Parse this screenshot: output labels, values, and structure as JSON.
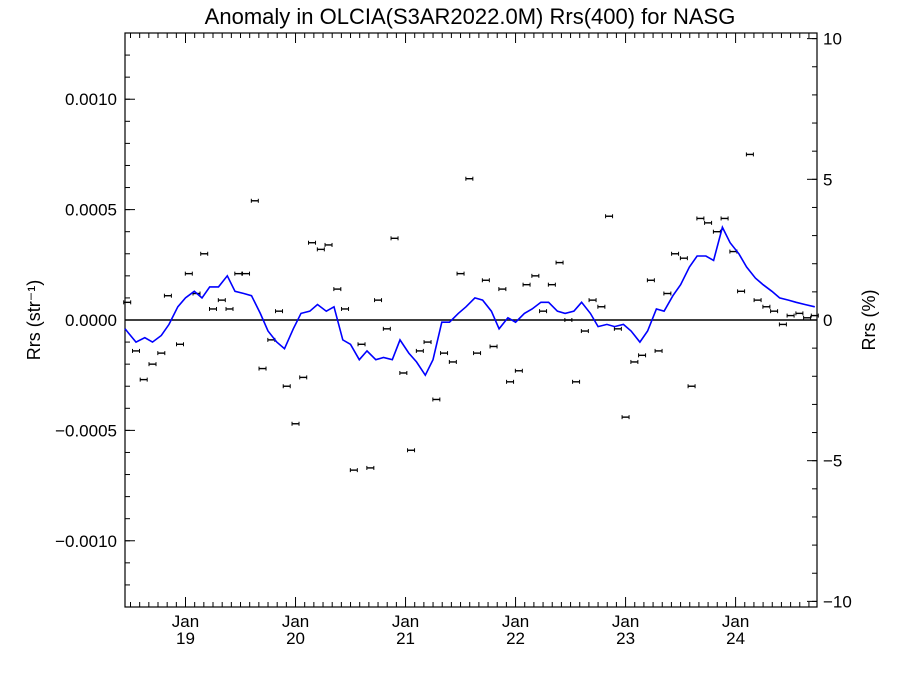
{
  "chart_data": {
    "type": "scatter",
    "title": "Anomaly in OLCIA(S3AR2022.0M) Rrs(400) for NASG",
    "ylabel_left": "Rrs (str⁻¹)",
    "ylabel_right": "Rrs (%)",
    "xlim": [
      2018.45,
      2024.74
    ],
    "ylim_left": [
      -0.0013,
      0.0013
    ],
    "ylim_right": [
      -10.2,
      10.2
    ],
    "left_ticks": [
      "0.0010",
      "0.0005",
      "0.0000",
      "−0.0005",
      "−0.0010"
    ],
    "left_tick_values": [
      0.001,
      0.0005,
      0.0,
      -0.0005,
      -0.001
    ],
    "right_ticks": [
      "10",
      "5",
      "0",
      "−5",
      "−10"
    ],
    "right_tick_values": [
      10,
      5,
      0,
      -5,
      -10
    ],
    "x_ticks": [
      {
        "month": "Jan",
        "year": "19",
        "x": 2019.0
      },
      {
        "month": "Jan",
        "year": "20",
        "x": 2020.0
      },
      {
        "month": "Jan",
        "year": "21",
        "x": 2021.0
      },
      {
        "month": "Jan",
        "year": "22",
        "x": 2022.0
      },
      {
        "month": "Jan",
        "year": "23",
        "x": 2023.0
      },
      {
        "month": "Jan",
        "year": "24",
        "x": 2024.0
      }
    ],
    "grid": false,
    "reference_line": 0,
    "series": [
      {
        "style": "points",
        "color": "#000000",
        "points": [
          [
            2018.47,
            8e-05
          ],
          [
            2018.55,
            -0.00014
          ],
          [
            2018.62,
            -0.00027
          ],
          [
            2018.7,
            -0.0002
          ],
          [
            2018.78,
            -0.00015
          ],
          [
            2018.84,
            0.00011
          ],
          [
            2018.95,
            -0.00011
          ],
          [
            2019.03,
            0.00021
          ],
          [
            2019.1,
            0.00012
          ],
          [
            2019.17,
            0.0003
          ],
          [
            2019.25,
            5e-05
          ],
          [
            2019.33,
            9e-05
          ],
          [
            2019.4,
            5e-05
          ],
          [
            2019.48,
            0.00021
          ],
          [
            2019.55,
            0.00021
          ],
          [
            2019.63,
            0.00054
          ],
          [
            2019.7,
            -0.00022
          ],
          [
            2019.78,
            -9e-05
          ],
          [
            2019.85,
            4e-05
          ],
          [
            2019.92,
            -0.0003
          ],
          [
            2020.0,
            -0.00047
          ],
          [
            2020.07,
            -0.00026
          ],
          [
            2020.15,
            0.00035
          ],
          [
            2020.23,
            0.00032
          ],
          [
            2020.3,
            0.00034
          ],
          [
            2020.38,
            0.00014
          ],
          [
            2020.45,
            5e-05
          ],
          [
            2020.53,
            -0.00068
          ],
          [
            2020.6,
            -0.00011
          ],
          [
            2020.68,
            -0.00067
          ],
          [
            2020.75,
            9e-05
          ],
          [
            2020.83,
            -4e-05
          ],
          [
            2020.9,
            0.00037
          ],
          [
            2020.98,
            -0.00024
          ],
          [
            2021.05,
            -0.00059
          ],
          [
            2021.13,
            -0.00014
          ],
          [
            2021.2,
            -0.0001
          ],
          [
            2021.28,
            -0.00036
          ],
          [
            2021.35,
            -0.00015
          ],
          [
            2021.43,
            -0.00019
          ],
          [
            2021.5,
            0.00021
          ],
          [
            2021.58,
            0.00064
          ],
          [
            2021.65,
            -0.00015
          ],
          [
            2021.73,
            0.00018
          ],
          [
            2021.8,
            -0.00012
          ],
          [
            2021.88,
            0.00014
          ],
          [
            2021.95,
            -0.00028
          ],
          [
            2022.03,
            -0.00023
          ],
          [
            2022.1,
            0.00016
          ],
          [
            2022.18,
            0.0002
          ],
          [
            2022.25,
            4e-05
          ],
          [
            2022.33,
            0.00016
          ],
          [
            2022.4,
            0.00026
          ],
          [
            2022.48,
            0.0
          ],
          [
            2022.55,
            -0.00028
          ],
          [
            2022.63,
            -5e-05
          ],
          [
            2022.7,
            9e-05
          ],
          [
            2022.78,
            6e-05
          ],
          [
            2022.85,
            0.00047
          ],
          [
            2022.93,
            -4e-05
          ],
          [
            2023.0,
            -0.00044
          ],
          [
            2023.08,
            -0.00019
          ],
          [
            2023.15,
            -0.00016
          ],
          [
            2023.23,
            0.00018
          ],
          [
            2023.3,
            -0.00014
          ],
          [
            2023.38,
            0.00012
          ],
          [
            2023.45,
            0.0003
          ],
          [
            2023.53,
            0.00028
          ],
          [
            2023.6,
            -0.0003
          ],
          [
            2023.68,
            0.00046
          ],
          [
            2023.75,
            0.00044
          ],
          [
            2023.83,
            0.0004
          ],
          [
            2023.9,
            0.00046
          ],
          [
            2023.98,
            0.00031
          ],
          [
            2024.05,
            0.00013
          ],
          [
            2024.13,
            0.00075
          ],
          [
            2024.2,
            9e-05
          ],
          [
            2024.28,
            6e-05
          ],
          [
            2024.35,
            4e-05
          ],
          [
            2024.43,
            -2e-05
          ],
          [
            2024.5,
            2e-05
          ],
          [
            2024.58,
            3e-05
          ],
          [
            2024.65,
            1e-05
          ],
          [
            2024.72,
            2e-05
          ]
        ]
      },
      {
        "style": "line",
        "color": "#0000ff",
        "points": [
          [
            2018.45,
            -4e-05
          ],
          [
            2018.55,
            -0.0001
          ],
          [
            2018.63,
            -8e-05
          ],
          [
            2018.7,
            -0.0001
          ],
          [
            2018.78,
            -7e-05
          ],
          [
            2018.85,
            -2e-05
          ],
          [
            2018.93,
            6e-05
          ],
          [
            2019.0,
            0.0001
          ],
          [
            2019.08,
            0.00013
          ],
          [
            2019.15,
            0.0001
          ],
          [
            2019.22,
            0.00015
          ],
          [
            2019.3,
            0.00015
          ],
          [
            2019.38,
            0.0002
          ],
          [
            2019.45,
            0.00013
          ],
          [
            2019.53,
            0.00012
          ],
          [
            2019.6,
            0.00011
          ],
          [
            2019.68,
            3e-05
          ],
          [
            2019.75,
            -5e-05
          ],
          [
            2019.83,
            -0.0001
          ],
          [
            2019.9,
            -0.00013
          ],
          [
            2019.98,
            -4e-05
          ],
          [
            2020.05,
            3e-05
          ],
          [
            2020.13,
            4e-05
          ],
          [
            2020.2,
            7e-05
          ],
          [
            2020.28,
            4e-05
          ],
          [
            2020.35,
            6e-05
          ],
          [
            2020.43,
            -9e-05
          ],
          [
            2020.5,
            -0.00011
          ],
          [
            2020.58,
            -0.00018
          ],
          [
            2020.65,
            -0.00014
          ],
          [
            2020.73,
            -0.00018
          ],
          [
            2020.8,
            -0.00017
          ],
          [
            2020.88,
            -0.00018
          ],
          [
            2020.95,
            -9e-05
          ],
          [
            2021.03,
            -0.00015
          ],
          [
            2021.1,
            -0.00019
          ],
          [
            2021.18,
            -0.00025
          ],
          [
            2021.25,
            -0.00018
          ],
          [
            2021.33,
            -1e-05
          ],
          [
            2021.4,
            -1e-05
          ],
          [
            2021.48,
            3e-05
          ],
          [
            2021.55,
            6e-05
          ],
          [
            2021.63,
            0.0001
          ],
          [
            2021.7,
            9e-05
          ],
          [
            2021.78,
            4e-05
          ],
          [
            2021.85,
            -4e-05
          ],
          [
            2021.93,
            1e-05
          ],
          [
            2022.0,
            -1e-05
          ],
          [
            2022.08,
            3e-05
          ],
          [
            2022.15,
            5e-05
          ],
          [
            2022.23,
            8e-05
          ],
          [
            2022.3,
            8e-05
          ],
          [
            2022.38,
            4e-05
          ],
          [
            2022.45,
            3e-05
          ],
          [
            2022.53,
            4e-05
          ],
          [
            2022.6,
            8e-05
          ],
          [
            2022.68,
            3e-05
          ],
          [
            2022.75,
            -3e-05
          ],
          [
            2022.83,
            -2e-05
          ],
          [
            2022.9,
            -3e-05
          ],
          [
            2022.98,
            -2e-05
          ],
          [
            2023.05,
            -5e-05
          ],
          [
            2023.13,
            -0.0001
          ],
          [
            2023.2,
            -5e-05
          ],
          [
            2023.28,
            5e-05
          ],
          [
            2023.35,
            4e-05
          ],
          [
            2023.43,
            0.00011
          ],
          [
            2023.5,
            0.00016
          ],
          [
            2023.58,
            0.00024
          ],
          [
            2023.65,
            0.00029
          ],
          [
            2023.73,
            0.00029
          ],
          [
            2023.8,
            0.00027
          ],
          [
            2023.88,
            0.00042
          ],
          [
            2023.95,
            0.00035
          ],
          [
            2024.03,
            0.0003
          ],
          [
            2024.1,
            0.00024
          ],
          [
            2024.18,
            0.00019
          ],
          [
            2024.25,
            0.00016
          ],
          [
            2024.33,
            0.00013
          ],
          [
            2024.4,
            0.0001
          ],
          [
            2024.48,
            9e-05
          ],
          [
            2024.55,
            8e-05
          ],
          [
            2024.63,
            7e-05
          ],
          [
            2024.72,
            6e-05
          ]
        ]
      }
    ]
  }
}
